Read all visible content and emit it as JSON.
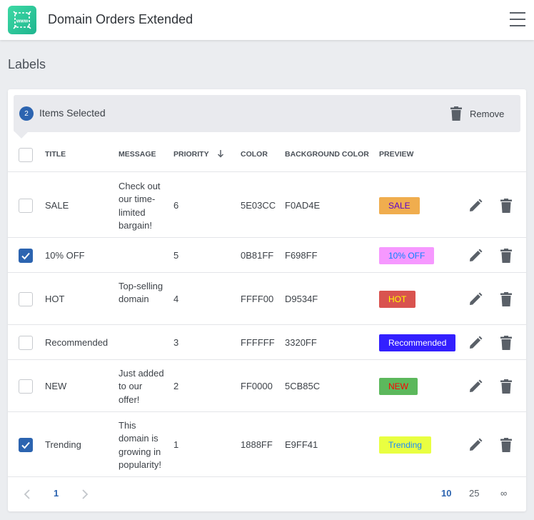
{
  "app": {
    "title": "Domain Orders Extended",
    "logo_icon": "www-globe-icon",
    "menu_icon": "hamburger-menu-icon"
  },
  "page": {
    "title": "Labels"
  },
  "selection": {
    "count": "2",
    "label": "Items Selected",
    "remove_label": "Remove"
  },
  "columns": {
    "title": "Title",
    "message": "Message",
    "priority": "Priority",
    "color": "Color",
    "background_color": "Background Color",
    "preview": "Preview",
    "sort_icon": "arrow-down-icon"
  },
  "rows": [
    {
      "checked": false,
      "title": "SALE",
      "message": "Check out our time-limited bargain!",
      "priority": "6",
      "color": "5E03CC",
      "background_color": "F0AD4E",
      "text_hex": "#5E03CC",
      "bg_hex": "#F0AD4E"
    },
    {
      "checked": true,
      "title": "10% OFF",
      "message": "",
      "priority": "5",
      "color": "0B81FF",
      "background_color": "F698FF",
      "text_hex": "#0B81FF",
      "bg_hex": "#F698FF"
    },
    {
      "checked": false,
      "title": "HOT",
      "message": "Top-selling domain",
      "priority": "4",
      "color": "FFFF00",
      "background_color": "D9534F",
      "text_hex": "#FFFF00",
      "bg_hex": "#D9534F"
    },
    {
      "checked": false,
      "title": "Recommended",
      "message": "",
      "priority": "3",
      "color": "FFFFFF",
      "background_color": "3320FF",
      "text_hex": "#FFFFFF",
      "bg_hex": "#3320FF"
    },
    {
      "checked": false,
      "title": "NEW",
      "message": "Just added to our offer!",
      "priority": "2",
      "color": "FF0000",
      "background_color": "5CB85C",
      "text_hex": "#FF0000",
      "bg_hex": "#5CB85C"
    },
    {
      "checked": true,
      "title": "Trending",
      "message": "This domain is growing in popularity!",
      "priority": "1",
      "color": "1888FF",
      "background_color": "E9FF41",
      "text_hex": "#1888FF",
      "bg_hex": "#E9FF41"
    }
  ],
  "pagination": {
    "current_page": "1",
    "page_sizes": [
      "10",
      "25",
      "∞"
    ],
    "active_page_size": "10"
  },
  "colors": {
    "accent": "#2c64b0",
    "icon": "#5a6068"
  }
}
